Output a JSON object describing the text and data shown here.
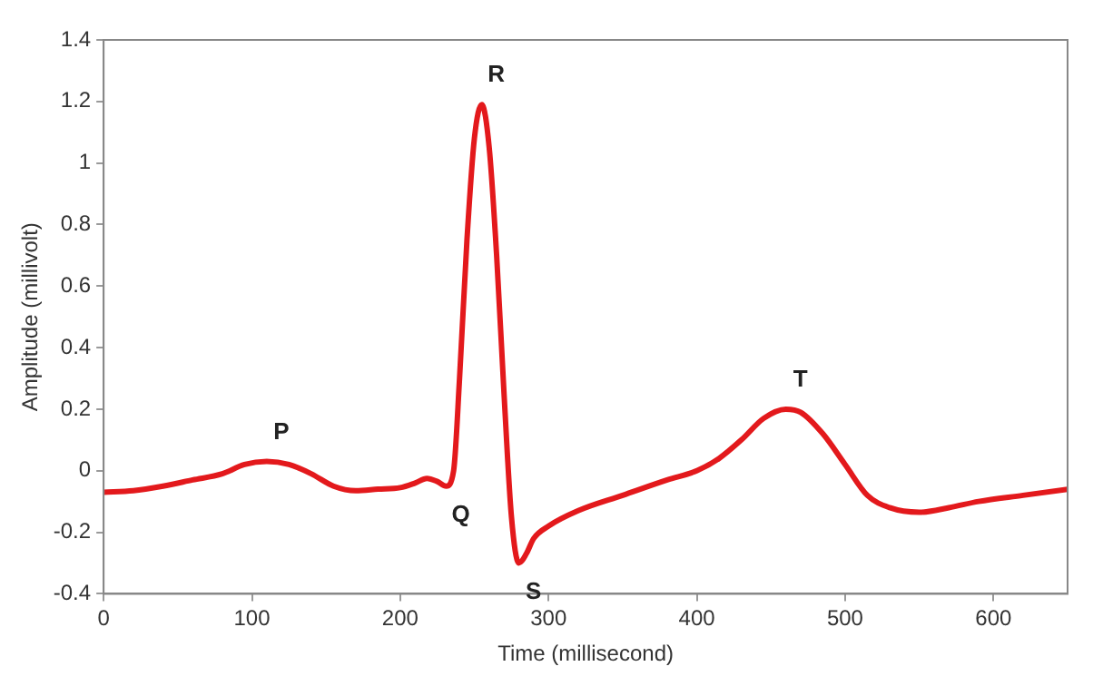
{
  "chart_data": {
    "type": "line",
    "xlabel": "Time (millisecond)",
    "ylabel": "Amplitude (millivolt)",
    "series": [
      {
        "color": "#e3191c",
        "x": [
          0,
          20,
          40,
          60,
          80,
          95,
          110,
          125,
          140,
          155,
          170,
          185,
          200,
          210,
          218,
          225,
          231,
          236,
          240,
          245,
          250,
          255,
          260,
          265,
          270,
          275,
          280,
          285,
          290,
          300,
          320,
          350,
          380,
          400,
          415,
          430,
          445,
          460,
          470,
          485,
          500,
          515,
          530,
          550,
          570,
          590,
          620,
          650
        ],
        "values": [
          -0.07,
          -0.065,
          -0.05,
          -0.03,
          -0.01,
          0.02,
          0.03,
          0.02,
          -0.01,
          -0.05,
          -0.065,
          -0.06,
          -0.055,
          -0.04,
          -0.025,
          -0.035,
          -0.05,
          0.0,
          0.3,
          0.75,
          1.08,
          1.19,
          1.05,
          0.7,
          0.25,
          -0.15,
          -0.3,
          -0.27,
          -0.22,
          -0.18,
          -0.13,
          -0.08,
          -0.03,
          0.0,
          0.04,
          0.1,
          0.17,
          0.2,
          0.19,
          0.12,
          0.02,
          -0.08,
          -0.12,
          -0.135,
          -0.12,
          -0.1,
          -0.08,
          -0.06
        ]
      }
    ],
    "xlim": [
      0,
      650
    ],
    "xticks": [
      0,
      100,
      200,
      300,
      400,
      500,
      600
    ],
    "ylim": [
      -0.4,
      1.4
    ],
    "yticks": [
      -0.4,
      -0.2,
      0,
      0.2,
      0.4,
      0.6,
      0.8,
      1,
      1.2,
      1.4
    ],
    "grid": false,
    "legend": false,
    "marker": "none",
    "line_style": "solid",
    "annotations": [
      {
        "text": "P",
        "x": 110,
        "y": 0.03
      },
      {
        "text": "Q",
        "x": 231,
        "y": -0.05
      },
      {
        "text": "R",
        "x": 255,
        "y": 1.19
      },
      {
        "text": "S",
        "x": 280,
        "y": -0.3
      },
      {
        "text": "T",
        "x": 460,
        "y": 0.2
      }
    ]
  }
}
